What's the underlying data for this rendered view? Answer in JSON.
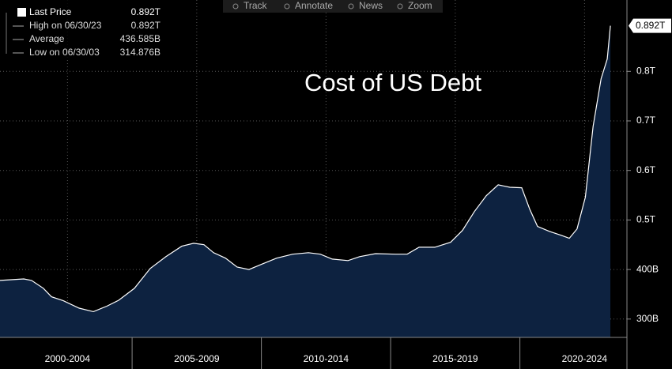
{
  "toolbar": [
    "Track",
    "Annotate",
    "News",
    "Zoom"
  ],
  "chart_data": {
    "type": "area",
    "title": "Cost of US Debt",
    "legend": [
      {
        "label": "Last Price",
        "value": "0.892T"
      },
      {
        "label": "High on 06/30/23",
        "value": "0.892T"
      },
      {
        "label": "Average",
        "value": "436.585B"
      },
      {
        "label": "Low on 06/30/03",
        "value": "314.876B"
      }
    ],
    "x": [
      1999.89,
      2000.81,
      2001.11,
      2001.57,
      2001.88,
      2002.34,
      2002.95,
      2003.5,
      2004.02,
      2004.48,
      2005.09,
      2005.7,
      2006.31,
      2006.92,
      2007.38,
      2007.78,
      2008.15,
      2008.61,
      2009.06,
      2009.52,
      2009.98,
      2010.59,
      2011.21,
      2011.82,
      2012.28,
      2012.74,
      2013.35,
      2013.8,
      2014.42,
      2015.18,
      2015.64,
      2016.1,
      2016.71,
      2017.32,
      2017.78,
      2018.24,
      2018.7,
      2019.16,
      2019.61,
      2020.07,
      2020.38,
      2020.68,
      2021.14,
      2021.6,
      2021.91,
      2022.21,
      2022.53,
      2022.83,
      2023.14,
      2023.38,
      2023.5
    ],
    "series": [
      {
        "color": "#0d2240",
        "line_color": "#ffffff",
        "values": [
          378,
          381,
          378,
          362,
          345,
          337,
          322,
          315,
          326,
          338,
          362,
          402,
          426,
          447,
          453,
          450,
          434,
          423,
          405,
          400,
          410,
          423,
          431,
          434,
          431,
          421,
          418,
          426,
          432,
          431,
          431,
          445,
          445,
          455,
          479,
          517,
          549,
          571,
          566,
          565,
          522,
          487,
          477,
          469,
          463,
          482,
          546,
          689,
          785,
          825,
          892
        ]
      }
    ],
    "xlim": [
      1999.89,
      2024.14
    ],
    "xticks": [
      {
        "value": 2002.5,
        "label": "2000-2004"
      },
      {
        "value": 2007.5,
        "label": "2005-2009"
      },
      {
        "value": 2012.5,
        "label": "2010-2014"
      },
      {
        "value": 2017.5,
        "label": "2015-2019"
      },
      {
        "value": 2022.5,
        "label": "2020-2024"
      }
    ],
    "ylim": [
      263,
      944
    ],
    "yticks": [
      {
        "value": 300,
        "label": "300B"
      },
      {
        "value": 400,
        "label": "400B"
      },
      {
        "value": 500,
        "label": "0.5T"
      },
      {
        "value": 600,
        "label": "0.6T"
      },
      {
        "value": 700,
        "label": "0.7T"
      },
      {
        "value": 800,
        "label": "0.8T"
      }
    ],
    "grid": true
  }
}
